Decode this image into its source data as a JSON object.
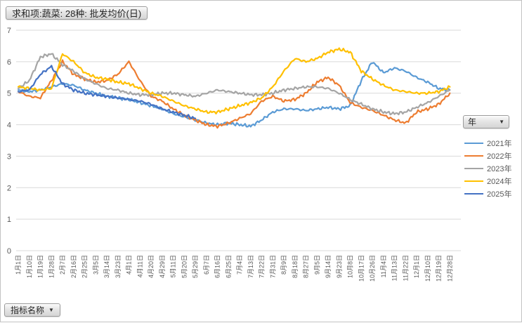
{
  "pivot_buttons": {
    "value_field": "求和项:蔬菜: 28种: 批发均价(日)",
    "legend_field": "年",
    "axis_field": "指标名称"
  },
  "colors": {
    "axis_text": "#595959",
    "gridline": "#D9D9D9",
    "background": "#FFFFFF",
    "frame_border": "#C3C3C3"
  },
  "chart_data": {
    "type": "line",
    "title": "求和项:蔬菜: 28种: 批发均价(日)",
    "xlabel": "",
    "ylabel": "",
    "ylim": [
      0,
      7
    ],
    "y_ticks": [
      0,
      1,
      2,
      3,
      4,
      5,
      6,
      7
    ],
    "grid": true,
    "legend_position": "right",
    "categories": [
      "1月1日",
      "1月10日",
      "1月19日",
      "1月28日",
      "2月7日",
      "2月16日",
      "2月25日",
      "3月5日",
      "3月14日",
      "3月23日",
      "4月1日",
      "4月11日",
      "4月20日",
      "4月29日",
      "5月11日",
      "5月20日",
      "5月29日",
      "6月7日",
      "6月16日",
      "6月25日",
      "7月4日",
      "7月13日",
      "7月22日",
      "7月31日",
      "8月9日",
      "8月18日",
      "8月27日",
      "9月5日",
      "9月14日",
      "9月23日",
      "10月8日",
      "10月17日",
      "10月26日",
      "11月4日",
      "11月13日",
      "11月22日",
      "12月1日",
      "12月10日",
      "12月19日",
      "12月28日"
    ],
    "series": [
      {
        "name": "2021年",
        "color": "#5B9BD5",
        "values": [
          5.1,
          5.05,
          5.1,
          5.2,
          5.3,
          5.25,
          5.1,
          5.0,
          4.9,
          4.85,
          4.8,
          4.7,
          4.6,
          4.5,
          4.35,
          4.25,
          4.15,
          4.05,
          4.0,
          4.05,
          4.0,
          3.95,
          4.15,
          4.4,
          4.5,
          4.5,
          4.45,
          4.5,
          4.55,
          4.5,
          4.6,
          5.4,
          6.0,
          5.65,
          5.8,
          5.7,
          5.5,
          5.35,
          5.15,
          5.1
        ]
      },
      {
        "name": "2022年",
        "color": "#ED7D31",
        "values": [
          5.05,
          4.9,
          4.85,
          5.4,
          6.0,
          5.6,
          5.45,
          5.35,
          5.4,
          5.6,
          6.0,
          5.4,
          4.9,
          4.75,
          4.5,
          4.3,
          4.15,
          4.0,
          3.95,
          4.05,
          4.2,
          4.35,
          4.75,
          4.9,
          4.75,
          4.8,
          5.0,
          5.35,
          5.5,
          5.25,
          4.7,
          4.55,
          4.45,
          4.3,
          4.15,
          4.05,
          4.4,
          4.5,
          4.65,
          5.0
        ]
      },
      {
        "name": "2023年",
        "color": "#A5A5A5",
        "values": [
          5.15,
          5.4,
          6.15,
          6.25,
          5.9,
          5.7,
          5.45,
          5.3,
          5.15,
          5.1,
          5.0,
          4.95,
          4.95,
          5.0,
          5.0,
          4.95,
          4.9,
          5.0,
          5.1,
          5.05,
          5.0,
          4.95,
          4.95,
          5.0,
          5.1,
          5.15,
          5.2,
          5.2,
          5.15,
          5.0,
          4.8,
          4.65,
          4.5,
          4.4,
          4.35,
          4.4,
          4.55,
          4.7,
          4.9,
          5.1
        ]
      },
      {
        "name": "2024年",
        "color": "#FFC000",
        "values": [
          5.2,
          5.15,
          5.1,
          5.15,
          6.25,
          6.0,
          5.65,
          5.5,
          5.45,
          5.35,
          5.3,
          5.15,
          5.0,
          4.9,
          4.75,
          4.6,
          4.5,
          4.4,
          4.4,
          4.5,
          4.6,
          4.7,
          4.85,
          5.2,
          5.7,
          6.1,
          6.0,
          6.1,
          6.3,
          6.4,
          6.3,
          5.7,
          5.45,
          5.25,
          5.1,
          5.05,
          5.0,
          5.0,
          5.05,
          5.2
        ]
      },
      {
        "name": "2025年",
        "color": "#4472C4",
        "values": [
          5.05,
          5.1,
          5.6,
          5.85,
          5.3,
          5.1,
          5.0,
          4.95,
          4.9,
          4.85,
          4.8,
          4.75,
          4.65,
          4.5,
          4.4,
          4.3,
          4.2,
          null,
          null,
          null,
          null,
          null,
          null,
          null,
          null,
          null,
          null,
          null,
          null,
          null,
          null,
          null,
          null,
          null,
          null,
          null,
          null,
          null,
          null,
          null
        ]
      }
    ]
  }
}
